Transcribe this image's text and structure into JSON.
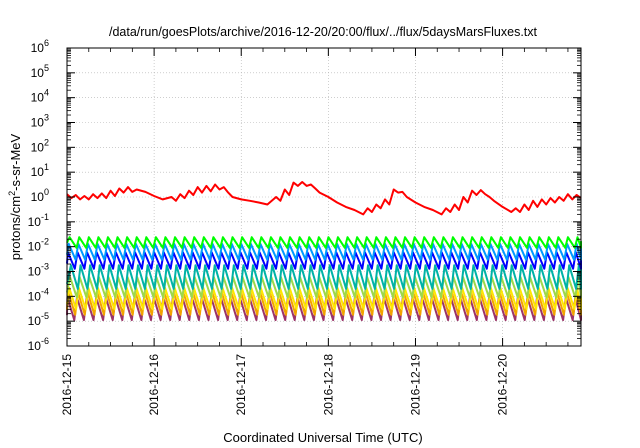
{
  "chart_data": {
    "type": "line",
    "title": "/data/run/goesPlots/archive/2016-12-20/20:00/flux/../flux/5daysMarsFluxes.txt",
    "xlabel": "Coordinated Universal Time (UTC)",
    "ylabel": {
      "base": "protons/cm",
      "sup": "2",
      "rest": "-s-sr-MeV"
    },
    "xlim": [
      0,
      5.9
    ],
    "x_ticks": [
      {
        "value": 0,
        "label": "2016-12-15"
      },
      {
        "value": 1,
        "label": "2016-12-16"
      },
      {
        "value": 2,
        "label": "2016-12-17"
      },
      {
        "value": 3,
        "label": "2016-12-18"
      },
      {
        "value": 4,
        "label": "2016-12-19"
      },
      {
        "value": 5,
        "label": "2016-12-20"
      }
    ],
    "y_scale": "log",
    "ylim_exp": [
      -6,
      6
    ],
    "y_ticks": [
      {
        "exp": -6,
        "base": "10",
        "sup": "-6"
      },
      {
        "exp": -5,
        "base": "10",
        "sup": "-5"
      },
      {
        "exp": -4,
        "base": "10",
        "sup": "-4"
      },
      {
        "exp": -3,
        "base": "10",
        "sup": "-3"
      },
      {
        "exp": -2,
        "base": "10",
        "sup": "-2"
      },
      {
        "exp": -1,
        "base": "10",
        "sup": "-1"
      },
      {
        "exp": 0,
        "base": "10",
        "sup": "0"
      },
      {
        "exp": 1,
        "base": "10",
        "sup": "1"
      },
      {
        "exp": 2,
        "base": "10",
        "sup": "2"
      },
      {
        "exp": 3,
        "base": "10",
        "sup": "3"
      },
      {
        "exp": 4,
        "base": "10",
        "sup": "4"
      },
      {
        "exp": 5,
        "base": "10",
        "sup": "5"
      },
      {
        "exp": 6,
        "base": "10",
        "sup": "6"
      }
    ],
    "grid": true,
    "main_series": {
      "color": "#ff0000",
      "x": [
        0,
        0.05,
        0.1,
        0.15,
        0.2,
        0.25,
        0.3,
        0.35,
        0.4,
        0.45,
        0.5,
        0.55,
        0.6,
        0.65,
        0.7,
        0.75,
        0.8,
        0.9,
        1.0,
        1.1,
        1.2,
        1.25,
        1.3,
        1.35,
        1.4,
        1.45,
        1.5,
        1.55,
        1.6,
        1.65,
        1.7,
        1.75,
        1.8,
        1.85,
        1.9,
        2.0,
        2.1,
        2.2,
        2.3,
        2.4,
        2.45,
        2.5,
        2.55,
        2.6,
        2.65,
        2.7,
        2.75,
        2.8,
        2.85,
        2.9,
        3.0,
        3.1,
        3.2,
        3.3,
        3.4,
        3.45,
        3.5,
        3.55,
        3.6,
        3.65,
        3.7,
        3.75,
        3.8,
        3.85,
        3.9,
        4.0,
        4.1,
        4.2,
        4.3,
        4.35,
        4.4,
        4.45,
        4.5,
        4.55,
        4.6,
        4.65,
        4.7,
        4.75,
        4.8,
        4.85,
        4.9,
        5.0,
        5.1,
        5.15,
        5.2,
        5.25,
        5.3,
        5.35,
        5.4,
        5.45,
        5.5,
        5.55,
        5.6,
        5.65,
        5.7,
        5.75,
        5.8,
        5.85,
        5.9
      ],
      "y": [
        1.3,
        0.9,
        1.2,
        0.8,
        1.1,
        0.8,
        1.3,
        0.9,
        1.4,
        0.9,
        1.8,
        1.1,
        2.2,
        1.5,
        2.5,
        1.6,
        2.0,
        1.6,
        1.1,
        0.8,
        1.0,
        0.7,
        1.3,
        0.9,
        1.8,
        1.2,
        2.5,
        1.5,
        2.8,
        1.7,
        3.2,
        2.0,
        2.5,
        1.5,
        1.0,
        0.8,
        0.7,
        0.6,
        0.5,
        1.0,
        0.7,
        2.0,
        1.2,
        3.8,
        2.8,
        4.0,
        2.8,
        3.2,
        2.2,
        1.5,
        1.0,
        0.6,
        0.4,
        0.3,
        0.2,
        0.35,
        0.25,
        0.5,
        0.35,
        0.8,
        0.5,
        2.0,
        1.5,
        1.6,
        1.0,
        0.6,
        0.4,
        0.3,
        0.2,
        0.35,
        0.25,
        0.5,
        0.3,
        1.0,
        0.6,
        1.8,
        1.2,
        1.9,
        1.3,
        1.0,
        0.7,
        0.4,
        0.25,
        0.35,
        0.25,
        0.5,
        0.3,
        0.7,
        0.4,
        0.8,
        0.5,
        0.9,
        0.6,
        1.0,
        0.7,
        1.3,
        0.8,
        1.2,
        0.9
      ]
    },
    "periodic_series": [
      {
        "color": "#00ff00",
        "peak": 0.024,
        "trough": 0.009,
        "phase": 0.03
      },
      {
        "color": "#0099ff",
        "peak": 0.013,
        "trough": 0.003,
        "phase": 0.02
      },
      {
        "color": "#0000ff",
        "peak": 0.006,
        "trough": 0.0013,
        "phase": 0.01
      },
      {
        "color": "#00b3a6",
        "peak": 0.0018,
        "trough": 0.0002,
        "phase": 0.045
      },
      {
        "color": "#9fd84b",
        "peak": 0.0006,
        "trough": 9e-05,
        "phase": 0.035
      },
      {
        "color": "#ffe600",
        "peak": 0.00022,
        "trough": 3e-05,
        "phase": 0.025
      },
      {
        "color": "#f2a200",
        "peak": 0.00015,
        "trough": 1.8e-05,
        "phase": 0.015
      },
      {
        "color": "#9b3368",
        "peak": 9e-05,
        "trough": 1.1e-05,
        "phase": 0.005
      }
    ],
    "periodic_cycle_days": 0.11
  }
}
